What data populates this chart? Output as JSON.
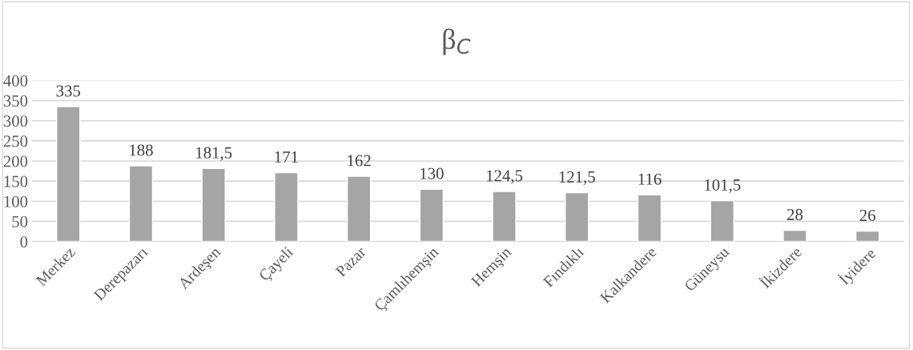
{
  "chart_data": {
    "type": "bar",
    "title": "β$_{C}$",
    "categories": [
      "Merkez",
      "Derepazarı",
      "Ardeşen",
      "Çayeli",
      "Pazar",
      "Çamlıhemşin",
      "Hemşin",
      "Fındıklı",
      "Kalkandere",
      "Güneysu",
      "İkizdere",
      "İyidere"
    ],
    "values": [
      335,
      188,
      181.5,
      171,
      162,
      130,
      124.5,
      121.5,
      116,
      101.5,
      28,
      26
    ],
    "value_labels": [
      "335",
      "188",
      "181,5",
      "171",
      "162",
      "130",
      "124,5",
      "121,5",
      "116",
      "101,5",
      "28",
      "26"
    ],
    "color": "#a5a5a5",
    "ylim": [
      0,
      400
    ],
    "yticks": [
      0,
      50,
      100,
      150,
      200,
      250,
      300,
      350,
      400
    ],
    "grid": "y",
    "legend": false
  }
}
